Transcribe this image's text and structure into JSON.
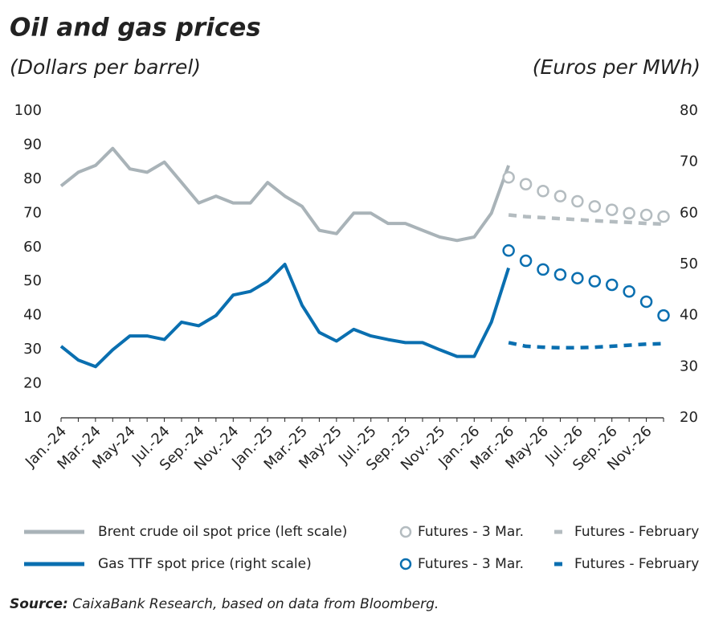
{
  "chart_data": {
    "type": "line",
    "title": "Oil and gas prices",
    "y_axis_label": "(Dollars per barrel)",
    "y2_axis_label": "(Euros per MWh)",
    "categories": [
      "Jan.-24",
      null,
      "Mar.-24",
      null,
      "May-24",
      null,
      "Jul.-24",
      null,
      "Sep.-24",
      null,
      "Nov.-24",
      null,
      "Jan.-25",
      null,
      "Mar.-25",
      null,
      "May-25",
      null,
      "Jul.-25",
      null,
      "Sep.-25",
      null,
      "Nov.-25",
      null,
      "Jan.-26",
      null,
      "Mar.-26",
      null,
      "May-26",
      null,
      "Jul.-26",
      null,
      "Sep.-26",
      null,
      "Nov.-26",
      null
    ],
    "ylim": [
      10,
      100
    ],
    "yticks": [
      10,
      20,
      30,
      40,
      50,
      60,
      70,
      80,
      90,
      100
    ],
    "y2lim": [
      20,
      80
    ],
    "y2ticks": [
      20,
      30,
      40,
      50,
      60,
      70,
      80
    ],
    "series": [
      {
        "name": "Brent crude oil spot price (left scale)",
        "color": "#a9b3b8",
        "style": "line",
        "values": [
          78,
          82,
          84,
          89,
          83,
          82,
          85,
          79,
          73,
          75,
          73,
          73,
          79,
          75,
          72,
          65,
          64,
          70,
          70,
          67,
          67,
          65,
          63,
          62,
          63,
          70,
          84,
          null,
          null,
          null,
          null,
          null,
          null,
          null,
          null,
          null
        ]
      },
      {
        "name": "Futures - 3 Mar.",
        "color": "#b4bcc0",
        "style": "markers",
        "values": [
          null,
          null,
          null,
          null,
          null,
          null,
          null,
          null,
          null,
          null,
          null,
          null,
          null,
          null,
          null,
          null,
          null,
          null,
          null,
          null,
          null,
          null,
          null,
          null,
          null,
          null,
          80.5,
          78.5,
          76.5,
          75,
          73.5,
          72,
          71,
          70,
          69.5,
          69
        ]
      },
      {
        "name": "Futures - February",
        "color": "#b4bcc0",
        "style": "dashed",
        "values": [
          null,
          null,
          null,
          null,
          null,
          null,
          null,
          null,
          null,
          null,
          null,
          null,
          null,
          null,
          null,
          null,
          null,
          null,
          null,
          null,
          null,
          null,
          null,
          null,
          null,
          null,
          69.5,
          69,
          68.7,
          68.4,
          68.1,
          67.8,
          67.5,
          67.3,
          67,
          66.8
        ]
      },
      {
        "name": "Gas TTF spot price (right scale)",
        "color": "#0a6fb0",
        "style": "line",
        "axis": "y2",
        "values": [
          34,
          31.3,
          30,
          33.3,
          36,
          36,
          35.3,
          38.7,
          38,
          40,
          44,
          44.7,
          46.7,
          50,
          42,
          36.7,
          35,
          37.3,
          36,
          35.3,
          34.7,
          34.7,
          33.3,
          32,
          32,
          38.7,
          49.3,
          null,
          null,
          null,
          null,
          null,
          null,
          null,
          null,
          null
        ]
      },
      {
        "name": "Futures - 3 Mar.",
        "color": "#0a6fb0",
        "style": "markers",
        "axis": "y2",
        "values": [
          null,
          null,
          null,
          null,
          null,
          null,
          null,
          null,
          null,
          null,
          null,
          null,
          null,
          null,
          null,
          null,
          null,
          null,
          null,
          null,
          null,
          null,
          null,
          null,
          null,
          null,
          52.7,
          50.7,
          49,
          48,
          47.3,
          46.7,
          46,
          44.7,
          42.7,
          40
        ]
      },
      {
        "name": "Futures - February",
        "color": "#0a6fb0",
        "style": "dashed",
        "axis": "y2",
        "values": [
          null,
          null,
          null,
          null,
          null,
          null,
          null,
          null,
          null,
          null,
          null,
          null,
          null,
          null,
          null,
          null,
          null,
          null,
          null,
          null,
          null,
          null,
          null,
          null,
          null,
          null,
          34.7,
          34,
          33.8,
          33.7,
          33.7,
          33.8,
          34,
          34.2,
          34.4,
          34.5
        ]
      }
    ],
    "source_label": "Source:",
    "source": "CaixaBank Research, based on data from Bloomberg."
  }
}
